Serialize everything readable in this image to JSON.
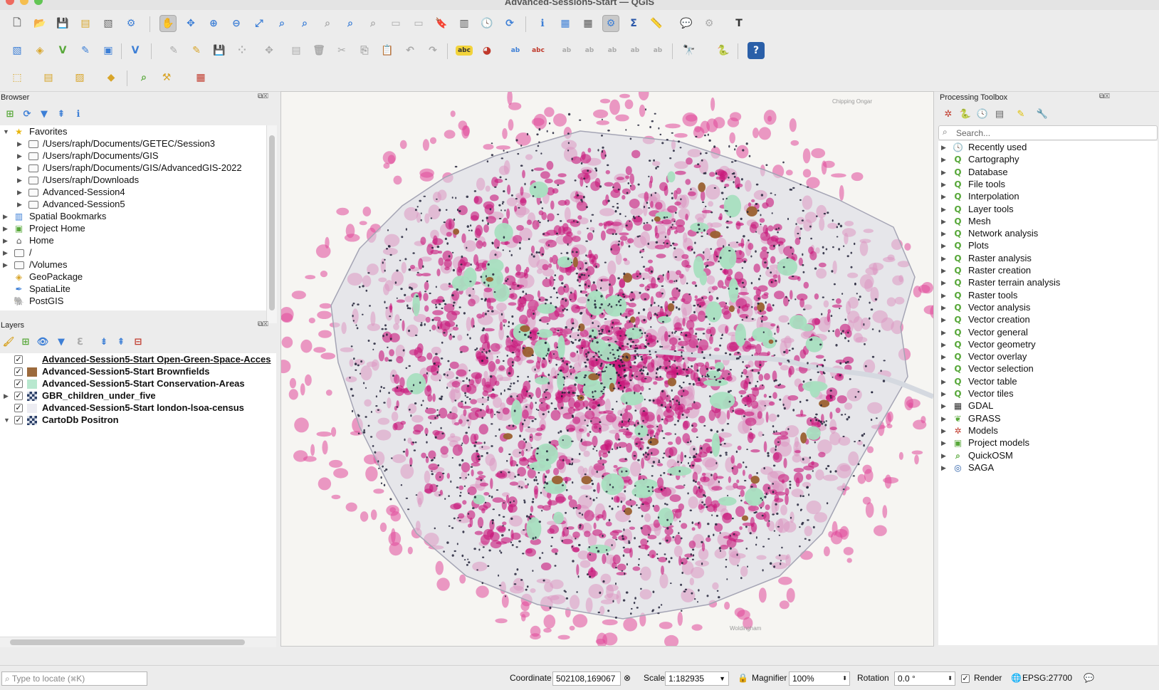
{
  "window": {
    "title": "Advanced-Session5-Start — QGIS"
  },
  "browser": {
    "title": "Browser",
    "items": [
      {
        "label": "Favorites",
        "level": 0,
        "icon": "star-icon",
        "expanded": true
      },
      {
        "label": "/Users/raph/Documents/GETEC/Session3",
        "level": 1,
        "icon": "folder-icon"
      },
      {
        "label": "/Users/raph/Documents/GIS",
        "level": 1,
        "icon": "folder-icon"
      },
      {
        "label": "/Users/raph/Documents/GIS/AdvancedGIS-2022",
        "level": 1,
        "icon": "folder-icon"
      },
      {
        "label": "/Users/raph/Downloads",
        "level": 1,
        "icon": "folder-icon"
      },
      {
        "label": "Advanced-Session4",
        "level": 1,
        "icon": "folder-icon"
      },
      {
        "label": "Advanced-Session5",
        "level": 1,
        "icon": "folder-icon"
      },
      {
        "label": "Spatial Bookmarks",
        "level": 0,
        "icon": "bookmarks-icon"
      },
      {
        "label": "Project Home",
        "level": 0,
        "icon": "project-home-icon"
      },
      {
        "label": "Home",
        "level": 0,
        "icon": "home-icon"
      },
      {
        "label": "/",
        "level": 0,
        "icon": "folder-icon"
      },
      {
        "label": "/Volumes",
        "level": 0,
        "icon": "folder-icon"
      },
      {
        "label": "GeoPackage",
        "level": 0,
        "icon": "geopackage-icon"
      },
      {
        "label": "SpatiaLite",
        "level": 0,
        "icon": "spatialite-icon"
      },
      {
        "label": "PostGIS",
        "level": 0,
        "icon": "postgis-icon"
      }
    ]
  },
  "layers": {
    "title": "Layers",
    "items": [
      {
        "label": "Advanced-Session5-Start Open-Green-Space-Acces",
        "checked": true,
        "swatch": "#ffffff",
        "active": true,
        "expandable": false
      },
      {
        "label": "Advanced-Session5-Start Brownfields",
        "checked": true,
        "swatch": "#9c6a3c",
        "expandable": false
      },
      {
        "label": "Advanced-Session5-Start Conservation-Areas",
        "checked": true,
        "swatch": "#b8e8cf",
        "expandable": false
      },
      {
        "label": "GBR_children_under_five",
        "checked": true,
        "swatch": "raster",
        "expandable": true
      },
      {
        "label": "Advanced-Session5-Start london-lsoa-census",
        "checked": true,
        "swatch": "#ececf2",
        "expandable": false
      },
      {
        "label": "CartoDb Positron",
        "checked": true,
        "swatch": "raster",
        "expandable": true,
        "expanded": true
      }
    ]
  },
  "toolbox": {
    "title": "Processing Toolbox",
    "search_placeholder": "Search...",
    "items": [
      {
        "label": "Recently used",
        "icon": "clock-icon"
      },
      {
        "label": "Cartography",
        "icon": "qgis-icon"
      },
      {
        "label": "Database",
        "icon": "qgis-icon"
      },
      {
        "label": "File tools",
        "icon": "qgis-icon"
      },
      {
        "label": "Interpolation",
        "icon": "qgis-icon"
      },
      {
        "label": "Layer tools",
        "icon": "qgis-icon"
      },
      {
        "label": "Mesh",
        "icon": "qgis-icon"
      },
      {
        "label": "Network analysis",
        "icon": "qgis-icon"
      },
      {
        "label": "Plots",
        "icon": "qgis-icon"
      },
      {
        "label": "Raster analysis",
        "icon": "qgis-icon"
      },
      {
        "label": "Raster creation",
        "icon": "qgis-icon"
      },
      {
        "label": "Raster terrain analysis",
        "icon": "qgis-icon"
      },
      {
        "label": "Raster tools",
        "icon": "qgis-icon"
      },
      {
        "label": "Vector analysis",
        "icon": "qgis-icon"
      },
      {
        "label": "Vector creation",
        "icon": "qgis-icon"
      },
      {
        "label": "Vector general",
        "icon": "qgis-icon"
      },
      {
        "label": "Vector geometry",
        "icon": "qgis-icon"
      },
      {
        "label": "Vector overlay",
        "icon": "qgis-icon"
      },
      {
        "label": "Vector selection",
        "icon": "qgis-icon"
      },
      {
        "label": "Vector table",
        "icon": "qgis-icon"
      },
      {
        "label": "Vector tiles",
        "icon": "qgis-icon"
      },
      {
        "label": "GDAL",
        "icon": "gdal-icon"
      },
      {
        "label": "GRASS",
        "icon": "grass-icon"
      },
      {
        "label": "Models",
        "icon": "models-icon"
      },
      {
        "label": "Project models",
        "icon": "project-models-icon"
      },
      {
        "label": "QuickOSM",
        "icon": "quickosm-icon"
      },
      {
        "label": "SAGA",
        "icon": "saga-icon"
      }
    ]
  },
  "map": {
    "labels": {
      "chipping": "Chipping Ongar",
      "bottom_label": "Woldingham"
    },
    "colors": {
      "pink": "#e0489b",
      "magenta": "#c8157a",
      "green": "#a8dfc0",
      "brown": "#9a6030",
      "boundary": "#d9d9e3"
    }
  },
  "statusbar": {
    "locate_placeholder": "Type to locate (⌘K)",
    "coordinate_label": "Coordinate",
    "coordinate_value": "502108,169067",
    "scale_label": "Scale",
    "scale_value": "1:182935",
    "magnifier_label": "Magnifier",
    "magnifier_value": "100%",
    "rotation_label": "Rotation",
    "rotation_value": "0.0 °",
    "render_label": "Render",
    "render_checked": true,
    "crs_label": "EPSG:27700"
  },
  "colors": {
    "accent": "#3d7fd6",
    "qgis_green": "#58a83a"
  }
}
